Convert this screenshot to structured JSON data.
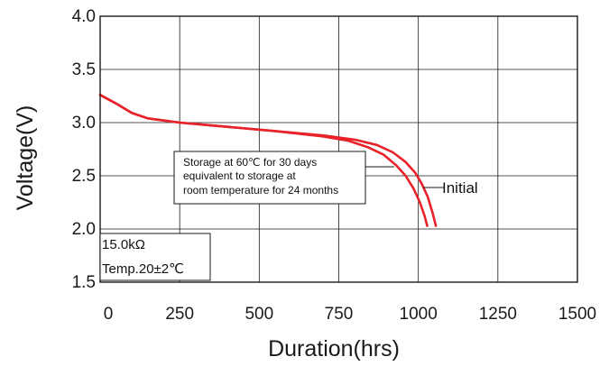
{
  "chart_data": {
    "type": "line",
    "xlabel": "Duration(hrs)",
    "ylabel": "Voltage(V)",
    "xlim": [
      0,
      1500
    ],
    "ylim": [
      1.5,
      4.0
    ],
    "xticks": [
      "0",
      "250",
      "500",
      "750",
      "1000",
      "1250",
      "1500"
    ],
    "yticks": [
      "1.5",
      "2.0",
      "2.5",
      "3.0",
      "3.5",
      "4.0"
    ],
    "grid": true,
    "series": [
      {
        "name": "Initial",
        "color": "#e8222a",
        "x": [
          0,
          50,
          100,
          150,
          250,
          400,
          550,
          700,
          800,
          870,
          920,
          960,
          990,
          1010,
          1030,
          1045,
          1055
        ],
        "y": [
          3.26,
          3.18,
          3.09,
          3.04,
          3.0,
          2.96,
          2.92,
          2.88,
          2.84,
          2.79,
          2.72,
          2.63,
          2.53,
          2.43,
          2.3,
          2.15,
          2.03
        ]
      },
      {
        "name": "Storage at 60℃ for 30 days",
        "color": "#e8222a",
        "x": [
          0,
          50,
          100,
          150,
          250,
          400,
          550,
          700,
          780,
          840,
          890,
          930,
          960,
          985,
          1005,
          1020,
          1028
        ],
        "y": [
          3.26,
          3.18,
          3.09,
          3.04,
          3.0,
          2.96,
          2.92,
          2.87,
          2.83,
          2.77,
          2.7,
          2.6,
          2.5,
          2.38,
          2.25,
          2.12,
          2.03
        ]
      }
    ],
    "annotations": {
      "storage_lines": [
        "Storage at 60℃ for 30 days",
        "equivalent to storage at",
        "room temperature for 24 months"
      ],
      "initial_label": "Initial",
      "conditions": [
        "15.0kΩ",
        "Temp.20±2℃"
      ]
    }
  }
}
